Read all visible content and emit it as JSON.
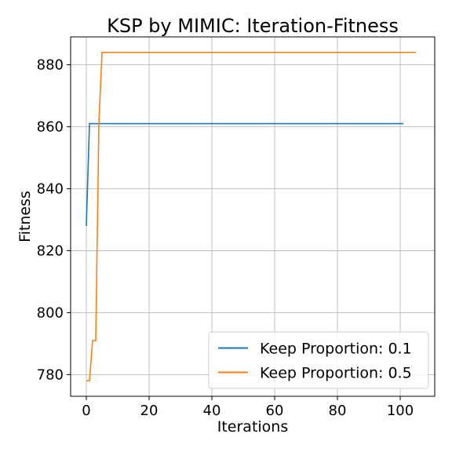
{
  "chart_data": {
    "type": "line",
    "title": "KSP by MIMIC: Iteration-Fitness",
    "xlabel": "Iterations",
    "ylabel": "Fitness",
    "xlim": [
      -5,
      111
    ],
    "ylim": [
      773,
      889
    ],
    "xticks": [
      0,
      20,
      40,
      60,
      80,
      100
    ],
    "yticks": [
      780,
      800,
      820,
      840,
      860,
      880
    ],
    "grid": true,
    "legend": {
      "placement": "bottom-right"
    },
    "series": [
      {
        "name": "Keep Proportion: 0.1",
        "color": "#1f77b4",
        "x": [
          0,
          1,
          101
        ],
        "y": [
          828,
          861,
          861
        ]
      },
      {
        "name": "Keep Proportion: 0.5",
        "color": "#ff7f0e",
        "x": [
          0,
          1,
          2,
          3,
          4,
          5,
          105
        ],
        "y": [
          778,
          778,
          791,
          791,
          861,
          884,
          884
        ]
      }
    ]
  }
}
